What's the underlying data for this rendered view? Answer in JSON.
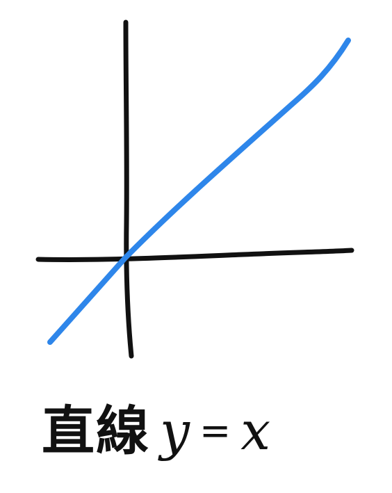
{
  "diagram": {
    "colors": {
      "axis": "#111111",
      "line": "#2e86ea",
      "background": "#ffffff"
    },
    "caption": {
      "word": "直線",
      "lhs": "y",
      "equals": "=",
      "rhs": "x"
    }
  }
}
